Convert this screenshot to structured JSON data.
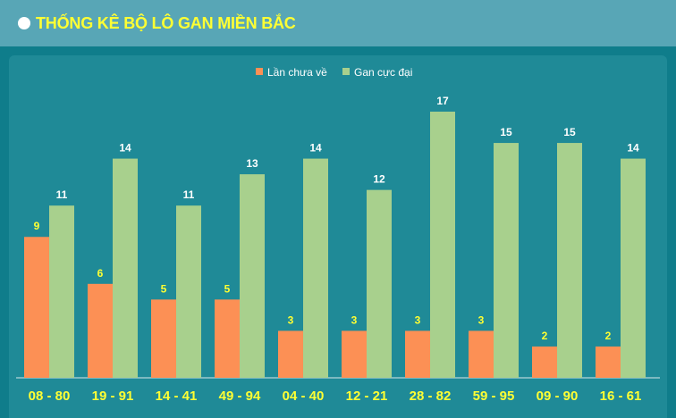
{
  "header": {
    "title": "THỐNG KÊ BỘ LÔ GAN MIỀN BẮC"
  },
  "colors": {
    "series1": "#fc9055",
    "series2": "#a8d08d",
    "label1": "#ffff33",
    "label2": "#ffffff"
  },
  "chart_data": {
    "type": "bar",
    "title": "",
    "xlabel": "",
    "ylabel": "",
    "ylim": [
      0,
      17
    ],
    "grid": false,
    "legend_position": "top-center",
    "categories": [
      "08 - 80",
      "19 - 91",
      "14 - 41",
      "49 - 94",
      "04 - 40",
      "12 - 21",
      "28 - 82",
      "59 - 95",
      "09 - 90",
      "16 - 61"
    ],
    "series": [
      {
        "name": "Lần chưa về",
        "values": [
          9,
          6,
          5,
          5,
          3,
          3,
          3,
          3,
          2,
          2
        ]
      },
      {
        "name": "Gan cực đại",
        "values": [
          11,
          14,
          11,
          13,
          14,
          12,
          17,
          15,
          15,
          14
        ]
      }
    ]
  }
}
